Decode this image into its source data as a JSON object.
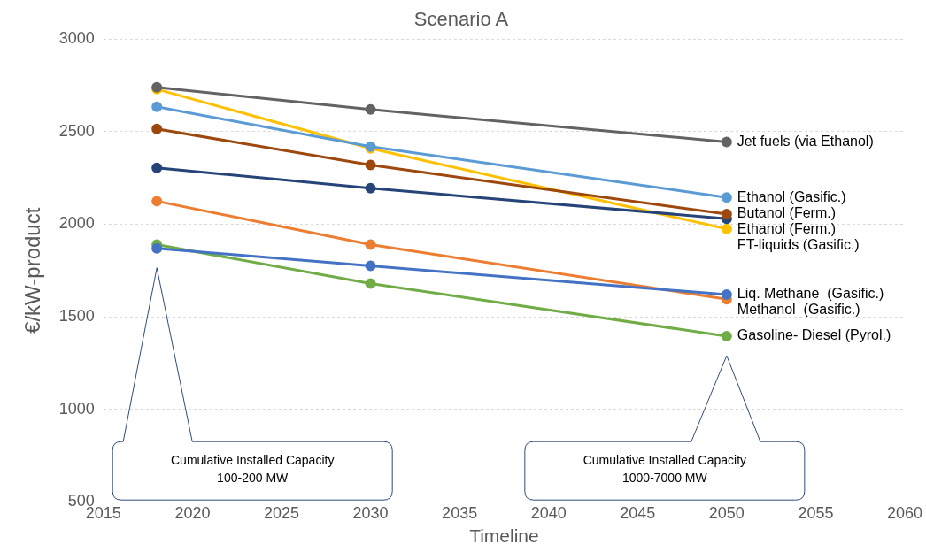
{
  "chart_data": {
    "type": "line",
    "title": "Scenario A",
    "xlabel": "Timeline",
    "ylabel": "€/kW-product",
    "x": [
      2018,
      2030,
      2050
    ],
    "series": [
      {
        "name": "Jet fuels (via Ethanol)",
        "color": "#636363",
        "values": [
          2740,
          2620,
          2445
        ]
      },
      {
        "name": "Ethanol (Gasific.)",
        "color": "#5b9bd5",
        "values": [
          2635,
          2420,
          2145
        ]
      },
      {
        "name": "Butanol (Ferm.)",
        "color": "#9e480e",
        "values": [
          2515,
          2320,
          2055
        ]
      },
      {
        "name": "Ethanol (Ferm.)",
        "color": "#264478",
        "values": [
          2305,
          2195,
          2030
        ]
      },
      {
        "name": "FT-liquids (Gasific.)",
        "color": "#ffc000",
        "values": [
          2730,
          2410,
          1975
        ]
      },
      {
        "name": "Liq. Methane  (Gasific.)",
        "color": "#4472c4",
        "values": [
          1870,
          1775,
          1620
        ]
      },
      {
        "name": "Methanol  (Gasific.)",
        "color": "#ed7d31",
        "values": [
          2125,
          1890,
          1595
        ]
      },
      {
        "name": "Gasoline- Diesel (Pyrol.)",
        "color": "#70ad47",
        "values": [
          1890,
          1680,
          1395
        ]
      }
    ],
    "xlim": [
      2015,
      2060
    ],
    "xticks": [
      2015,
      2020,
      2025,
      2030,
      2035,
      2040,
      2045,
      2050,
      2055,
      2060
    ],
    "ylim": [
      500,
      3000
    ],
    "yticks": [
      500,
      1000,
      1500,
      2000,
      2500,
      3000
    ],
    "grid": "y",
    "legend": false,
    "marker": "circle",
    "line_style": "solid",
    "annotations": [
      "Cumulative Installed Capacity\n100-200 MW",
      "Cumulative Installed Capacity\n1000-7000 MW"
    ]
  }
}
